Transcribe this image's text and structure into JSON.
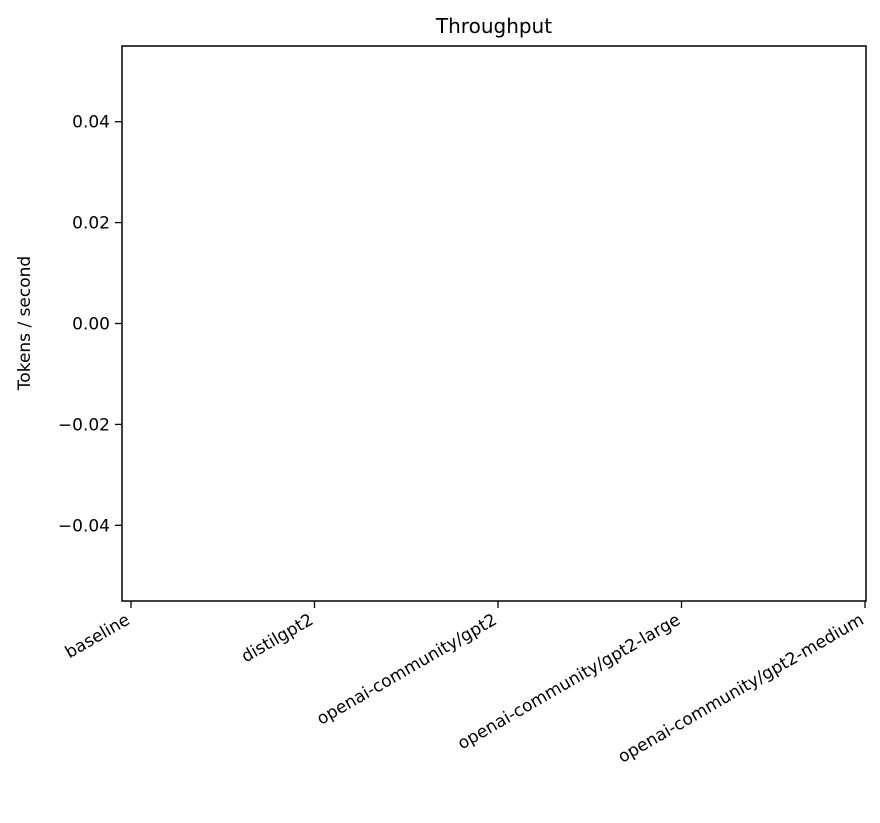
{
  "chart_data": {
    "type": "bar",
    "title": "Throughput",
    "xlabel": "",
    "ylabel": "Tokens / second",
    "categories": [
      "baseline",
      "distilgpt2",
      "openai-community/gpt2",
      "openai-community/gpt2-large",
      "openai-community/gpt2-medium"
    ],
    "values": [
      0,
      0,
      0,
      0,
      0
    ],
    "ylim": [
      -0.055,
      0.055
    ],
    "yticks": [
      -0.04,
      -0.02,
      0.0,
      0.02,
      0.04
    ],
    "ytick_labels": [
      "−0.04",
      "−0.02",
      "0.00",
      "0.02",
      "0.04"
    ],
    "grid": false,
    "legend": "none",
    "bar_color": "#1f77b4"
  }
}
